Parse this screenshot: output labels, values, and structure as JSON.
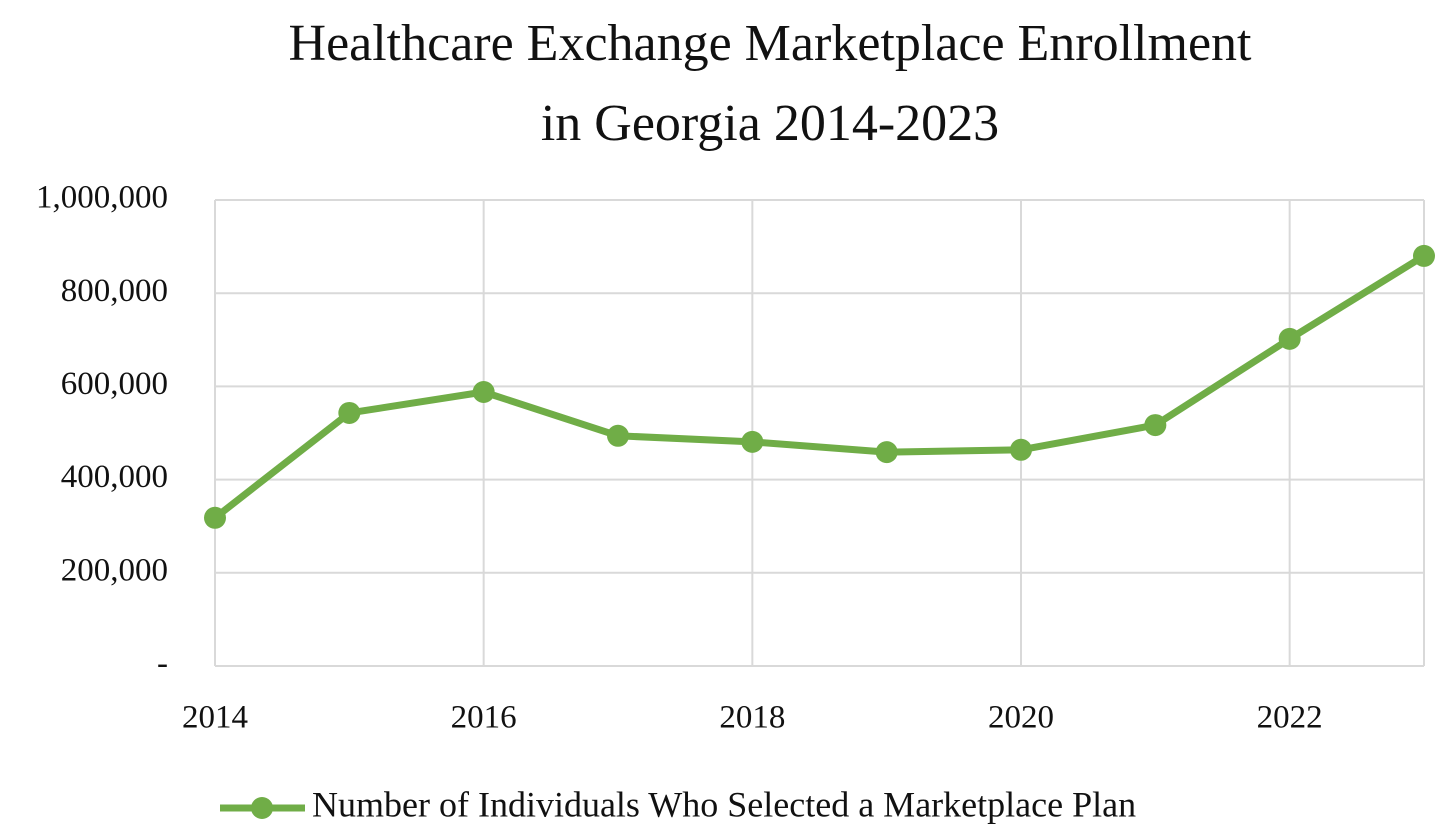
{
  "chart_data": {
    "type": "line",
    "title": "Healthcare Exchange Marketplace Enrollment in Georgia 2014-2023",
    "x": [
      2014,
      2015,
      2016,
      2017,
      2018,
      2019,
      2020,
      2021,
      2022,
      2023
    ],
    "series": [
      {
        "name": "Number of Individuals Who Selected a Marketplace Plan",
        "color": "#70ad47",
        "values": [
          318000,
          543000,
          588000,
          494000,
          481000,
          459000,
          464000,
          517000,
          702000,
          880000
        ]
      }
    ],
    "xlim": [
      2014,
      2023
    ],
    "xticks": [
      2014,
      2016,
      2018,
      2020,
      2022
    ],
    "ylim": [
      0,
      1000000
    ],
    "yticks": [
      {
        "value": 0,
        "label": "-"
      },
      {
        "value": 200000,
        "label": "200,000"
      },
      {
        "value": 400000,
        "label": "400,000"
      },
      {
        "value": 600000,
        "label": "600,000"
      },
      {
        "value": 800000,
        "label": "800,000"
      },
      {
        "value": 1000000,
        "label": "1,000,000"
      }
    ],
    "grid": true,
    "legend": "bottom"
  }
}
